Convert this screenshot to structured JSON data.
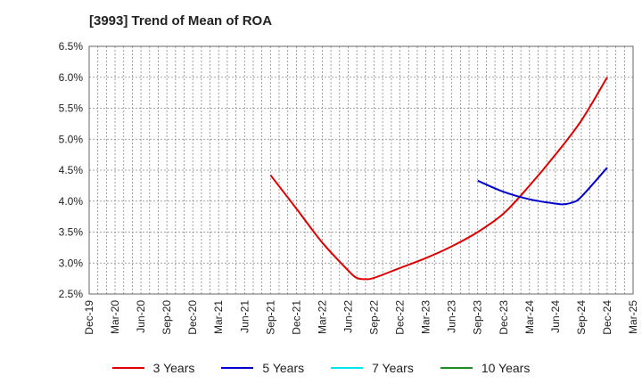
{
  "chart_data": {
    "type": "line",
    "title": "[3993]  Trend of Mean of ROA",
    "xlabel": "",
    "ylabel": "",
    "ylim": [
      2.5,
      6.5
    ],
    "y_ticks": [
      "2.5%",
      "3.0%",
      "3.5%",
      "4.0%",
      "4.5%",
      "5.0%",
      "5.5%",
      "6.0%",
      "6.5%"
    ],
    "categories": [
      "Dec-19",
      "Mar-20",
      "Jun-20",
      "Sep-20",
      "Dec-20",
      "Mar-21",
      "Jun-21",
      "Sep-21",
      "Dec-21",
      "Mar-22",
      "Jun-22",
      "Sep-22",
      "Dec-22",
      "Mar-23",
      "Jun-23",
      "Sep-23",
      "Dec-23",
      "Mar-24",
      "Jun-24",
      "Sep-24",
      "Dec-24",
      "Mar-25"
    ],
    "grid": true,
    "legend_position": "bottom",
    "series": [
      {
        "name": "3 Years",
        "color": "#e00000",
        "points": [
          [
            "Sep-21",
            4.42
          ],
          [
            "Dec-21",
            3.88
          ],
          [
            "Mar-22",
            3.33
          ],
          [
            "Jun-22",
            2.88
          ],
          [
            "Jul-22",
            2.76
          ],
          [
            "Aug-22",
            2.74
          ],
          [
            "Sep-22",
            2.76
          ],
          [
            "Dec-22",
            2.92
          ],
          [
            "Mar-23",
            3.08
          ],
          [
            "Jun-23",
            3.27
          ],
          [
            "Sep-23",
            3.5
          ],
          [
            "Dec-23",
            3.8
          ],
          [
            "Mar-24",
            4.25
          ],
          [
            "Jun-24",
            4.75
          ],
          [
            "Sep-24",
            5.3
          ],
          [
            "Dec-24",
            6.0
          ]
        ]
      },
      {
        "name": "5 Years",
        "color": "#0000cc",
        "points": [
          [
            "Sep-23",
            4.33
          ],
          [
            "Dec-23",
            4.15
          ],
          [
            "Mar-24",
            4.03
          ],
          [
            "Jun-24",
            3.96
          ],
          [
            "Jul-24",
            3.95
          ],
          [
            "Aug-24",
            3.98
          ],
          [
            "Sep-24",
            4.07
          ],
          [
            "Dec-24",
            4.54
          ]
        ]
      },
      {
        "name": "7 Years",
        "color": "#00e5ee",
        "points": []
      },
      {
        "name": "10 Years",
        "color": "#228b22",
        "points": []
      }
    ]
  }
}
